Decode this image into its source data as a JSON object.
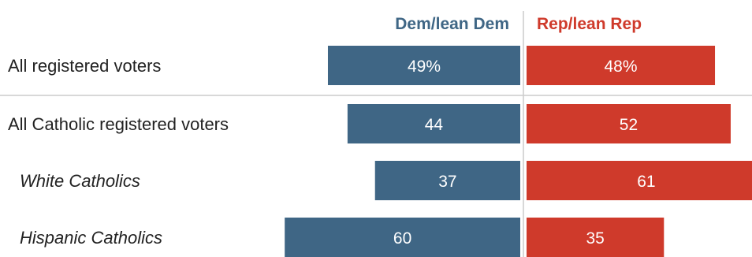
{
  "chart_data": {
    "type": "bar",
    "orientation": "horizontal-diverging",
    "series": [
      {
        "name": "Dem/lean Dem",
        "color": "#3f6685",
        "values": [
          49,
          44,
          37,
          60
        ]
      },
      {
        "name": "Rep/lean Rep",
        "color": "#cf3a2b",
        "values": [
          48,
          52,
          61,
          35
        ]
      }
    ],
    "categories": [
      {
        "label": "All registered voters",
        "italic": false
      },
      {
        "label": "All Catholic registered voters",
        "italic": false
      },
      {
        "label": "White Catholics",
        "italic": true
      },
      {
        "label": "Hispanic Catholics",
        "italic": true
      }
    ],
    "value_labels": [
      [
        "49%",
        "44",
        "37",
        "60"
      ],
      [
        "48%",
        "52",
        "61",
        "35"
      ]
    ],
    "gridline_after_row": 0,
    "colors": {
      "dem": "#3f6685",
      "rep": "#cf3a2b",
      "divider": "#cccccc"
    }
  }
}
